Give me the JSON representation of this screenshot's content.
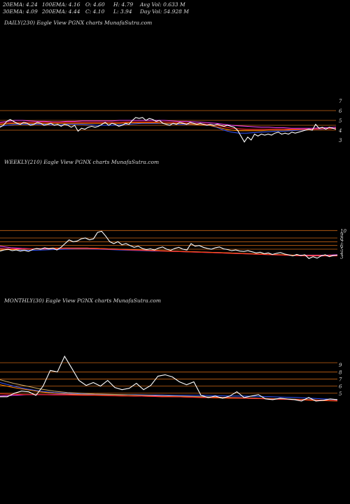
{
  "header": {
    "ema20": "20EMA: 4.24",
    "ema30": "30EMA: 4.09",
    "ema100": "100EMA: 4.16",
    "ema200": "200EMA: 4.44",
    "open": "O: 4.60",
    "close": "C: 4.10",
    "high": "H: 4.79",
    "low": "L: 3.94",
    "avg_vol": "Avg Vol: 0.633 M",
    "day_vol": "Day Vol: 54.928 M"
  },
  "colors": {
    "price": "#ffffff",
    "ema_blue": "#3355ff",
    "ema_magenta": "#ff44ff",
    "ema_orange": "#ff8800",
    "ema_red": "#ff2222",
    "ema_tan": "#ccaa66",
    "level_line": "#c86414"
  },
  "chart_data": [
    {
      "type": "line",
      "title": "DAILY(230) Eagle View PGNX charts MunafaSutra.com",
      "yticks": [
        "7",
        "6",
        "5",
        "4",
        "3"
      ],
      "ylim": [
        3,
        7
      ],
      "series": [
        {
          "color_key": "price",
          "values": [
            4.3,
            4.5,
            4.9,
            5.1,
            4.9,
            4.7,
            4.6,
            4.8,
            4.7,
            4.5,
            4.6,
            4.8,
            4.7,
            4.5,
            4.6,
            4.7,
            4.5,
            4.6,
            4.4,
            4.6,
            4.5,
            4.3,
            4.5,
            3.9,
            4.2,
            4.1,
            4.3,
            4.4,
            4.3,
            4.4,
            4.6,
            4.8,
            4.5,
            4.7,
            4.6,
            4.4,
            4.5,
            4.7,
            4.6,
            5.0,
            5.3,
            5.2,
            5.3,
            5.0,
            5.2,
            5.1,
            4.9,
            5.0,
            4.7,
            4.6,
            4.5,
            4.7,
            4.6,
            4.8,
            4.7,
            4.6,
            4.8,
            4.7,
            4.6,
            4.7,
            4.6,
            4.5,
            4.6,
            4.5,
            4.6,
            4.5,
            4.4,
            4.5,
            4.4,
            4.3,
            4.0,
            3.4,
            2.8,
            3.3,
            3.0,
            3.6,
            3.4,
            3.6,
            3.5,
            3.6,
            3.5,
            3.7,
            3.8,
            3.6,
            3.7,
            3.6,
            3.8,
            3.7,
            3.8,
            3.9,
            4.0,
            4.1,
            4.0,
            4.6,
            4.2,
            4.3,
            4.1,
            4.3,
            4.2,
            4.1
          ]
        },
        {
          "color_key": "ema_blue",
          "values": [
            4.4,
            4.5,
            4.6,
            4.6,
            4.6,
            4.6,
            4.6,
            4.55,
            4.55,
            4.6,
            4.6,
            4.6,
            4.55,
            4.5,
            4.5,
            4.5,
            4.55,
            4.6,
            4.65,
            4.7,
            4.7,
            4.7,
            4.7,
            4.65,
            4.6,
            4.6,
            4.6,
            4.55,
            4.5,
            4.3,
            4.0,
            3.8,
            3.7,
            3.7,
            3.75,
            3.8,
            3.85,
            3.9,
            3.9,
            3.95,
            4.0,
            4.05,
            4.1,
            4.1,
            4.15,
            4.2
          ]
        },
        {
          "color_key": "ema_magenta",
          "values": [
            4.8,
            4.9,
            5.0,
            5.0,
            4.95,
            4.9,
            4.9,
            4.85,
            4.85,
            4.9,
            4.9,
            4.95,
            4.95,
            4.95,
            4.95,
            4.95,
            5.0,
            5.0,
            5.0,
            5.0,
            5.0,
            5.0,
            5.0,
            4.95,
            4.9,
            4.9,
            4.85,
            4.8,
            4.75,
            4.7,
            4.6,
            4.5,
            4.45,
            4.4,
            4.35,
            4.3,
            4.3,
            4.25,
            4.25,
            4.2,
            4.2,
            4.2,
            4.2,
            4.25,
            4.25,
            4.3
          ]
        },
        {
          "color_key": "ema_orange",
          "values": [
            4.6,
            4.65,
            4.7,
            4.7,
            4.7,
            4.7,
            4.7,
            4.7,
            4.7,
            4.7,
            4.7,
            4.7,
            4.7,
            4.7,
            4.7,
            4.7,
            4.7,
            4.75,
            4.75,
            4.75,
            4.75,
            4.75,
            4.7,
            4.7,
            4.7,
            4.65,
            4.6,
            4.55,
            4.5,
            4.35,
            4.15,
            4.0,
            3.95,
            3.95,
            3.95,
            3.95,
            4.0,
            4.0,
            4.0,
            4.05,
            4.05,
            4.1,
            4.1,
            4.15,
            4.15,
            4.2
          ]
        },
        {
          "color_key": "ema_red",
          "values": [
            4.7,
            4.75,
            4.8,
            4.8,
            4.8,
            4.8,
            4.8,
            4.8,
            4.8,
            4.8,
            4.8,
            4.8,
            4.8,
            4.8,
            4.8,
            4.8,
            4.8,
            4.85,
            4.85,
            4.85,
            4.85,
            4.85,
            4.85,
            4.8,
            4.8,
            4.75,
            4.7,
            4.65,
            4.6,
            4.5,
            4.35,
            4.2,
            4.15,
            4.1,
            4.1,
            4.1,
            4.1,
            4.1,
            4.1,
            4.1,
            4.1,
            4.1,
            4.1,
            4.15,
            4.15,
            4.2
          ]
        }
      ],
      "levels": [
        6.0,
        5.0,
        4.5,
        4.0
      ]
    },
    {
      "type": "line",
      "title": "WEEKLY(210) Eagle View PGNX charts MunafaSutra.com",
      "yticks": [
        "10",
        "9",
        "8",
        "7",
        "6",
        "5",
        "4",
        "3"
      ],
      "ylim": [
        2,
        11
      ],
      "series": [
        {
          "color_key": "price",
          "values": [
            4.5,
            4.8,
            5.0,
            4.6,
            4.8,
            4.5,
            4.7,
            4.4,
            4.9,
            5.2,
            5.0,
            5.4,
            5.1,
            5.3,
            4.8,
            5.5,
            6.5,
            7.5,
            7.0,
            7.2,
            7.8,
            8.0,
            7.5,
            7.8,
            9.5,
            9.8,
            8.5,
            7.0,
            6.5,
            7.0,
            6.2,
            6.5,
            6.0,
            5.5,
            5.8,
            5.2,
            4.9,
            5.1,
            4.8,
            5.3,
            5.6,
            5.0,
            4.7,
            5.2,
            5.5,
            5.0,
            4.8,
            6.5,
            5.8,
            6.0,
            5.5,
            5.2,
            5.0,
            5.4,
            5.6,
            5.1,
            4.9,
            4.6,
            4.8,
            4.5,
            4.4,
            4.6,
            4.3,
            4.0,
            4.2,
            3.8,
            4.0,
            3.6,
            3.9,
            4.1,
            3.7,
            3.5,
            3.2,
            3.6,
            3.3,
            3.5,
            2.5,
            3.0,
            2.6,
            3.2,
            3.5,
            3.0,
            3.3,
            3.4
          ]
        },
        {
          "color_key": "ema_blue",
          "values": [
            5.3,
            5.0,
            4.8,
            4.7,
            4.8,
            4.9,
            5.0,
            5.1,
            5.1,
            5.0,
            4.9,
            4.8,
            4.7,
            4.6,
            4.5,
            4.5,
            4.4,
            4.3,
            4.2,
            4.1,
            4.0,
            3.9,
            3.8,
            3.7,
            3.6,
            3.5,
            3.4,
            3.3,
            3.2,
            3.2,
            3.2,
            3.3
          ]
        },
        {
          "color_key": "ema_magenta",
          "values": [
            5.8,
            5.4,
            5.2,
            5.1,
            5.1,
            5.2,
            5.3,
            5.3,
            5.3,
            5.2,
            5.1,
            5.0,
            4.9,
            4.8,
            4.7,
            4.6,
            4.5,
            4.4,
            4.3,
            4.2,
            4.1,
            4.0,
            3.9,
            3.8,
            3.7,
            3.6,
            3.5,
            3.4,
            3.4,
            3.4,
            3.4,
            3.5
          ]
        },
        {
          "color_key": "ema_orange",
          "values": [
            4.8,
            4.9,
            5.0,
            5.1,
            5.2,
            5.3,
            5.3,
            5.3,
            5.3,
            5.2,
            5.1,
            5.0,
            4.9,
            4.8,
            4.7,
            4.6,
            4.5,
            4.4,
            4.3,
            4.2,
            4.1,
            4.0,
            3.9,
            3.8,
            3.7,
            3.6,
            3.5,
            3.4,
            3.3,
            3.3,
            3.3,
            3.3
          ]
        },
        {
          "color_key": "ema_red",
          "values": [
            5.2,
            5.1,
            5.1,
            5.1,
            5.2,
            5.2,
            5.2,
            5.2,
            5.2,
            5.1,
            5.0,
            4.9,
            4.8,
            4.7,
            4.6,
            4.5,
            4.4,
            4.3,
            4.2,
            4.1,
            4.0,
            3.9,
            3.8,
            3.7,
            3.6,
            3.5,
            3.4,
            3.3,
            3.2,
            3.2,
            3.2,
            3.2
          ]
        }
      ],
      "levels": [
        10,
        8,
        7,
        6,
        5
      ]
    },
    {
      "type": "line",
      "title": "MONTHLY(30) Eagle View PGNX charts MunafaSutra.com",
      "yticks": [
        "9",
        "8",
        "7",
        "6",
        "5"
      ],
      "ylim": [
        3.5,
        10
      ],
      "series": [
        {
          "color_key": "price",
          "values": [
            4.5,
            4.5,
            5.0,
            5.3,
            5.2,
            4.7,
            6.0,
            8.2,
            8.0,
            10.2,
            8.5,
            6.8,
            6.1,
            6.5,
            6.0,
            6.8,
            5.8,
            5.5,
            5.7,
            6.4,
            5.5,
            6.1,
            7.4,
            7.6,
            7.3,
            6.6,
            6.2,
            6.6,
            4.7,
            4.4,
            4.6,
            4.3,
            4.6,
            5.2,
            4.4,
            4.6,
            4.8,
            4.2,
            4.1,
            4.3,
            4.2,
            4.1,
            3.9,
            4.4,
            3.9,
            4.0,
            4.2,
            4.1
          ]
        },
        {
          "color_key": "ema_blue",
          "values": [
            6.5,
            6.0,
            5.6,
            5.3,
            5.1,
            5.0,
            4.9,
            4.85,
            4.8,
            4.8,
            4.8,
            4.75,
            4.75,
            4.7,
            4.7,
            4.7,
            4.65,
            4.6,
            4.6,
            4.55,
            4.5,
            4.45,
            4.4,
            4.3,
            4.2,
            4.1
          ]
        },
        {
          "color_key": "ema_magenta",
          "values": [
            4.6,
            4.7,
            4.8,
            4.8,
            4.8,
            4.8,
            4.8,
            4.75,
            4.7,
            4.65,
            4.6,
            4.6,
            4.55,
            4.5,
            4.5,
            4.45,
            4.4,
            4.4,
            4.35,
            4.3,
            4.2,
            4.15,
            4.1,
            4.05,
            4.0,
            3.95
          ]
        },
        {
          "color_key": "ema_orange",
          "values": [
            6.2,
            5.8,
            5.5,
            5.2,
            5.0,
            4.9,
            4.8,
            4.75,
            4.7,
            4.65,
            4.6,
            4.55,
            4.5,
            4.5,
            4.45,
            4.4,
            4.35,
            4.3,
            4.3,
            4.25,
            4.2,
            4.15,
            4.1,
            4.0,
            3.95,
            3.9
          ]
        },
        {
          "color_key": "ema_tan",
          "values": [
            6.9,
            6.4,
            6.0,
            5.6,
            5.3,
            5.1,
            5.0,
            4.9,
            4.85,
            4.8,
            4.75,
            4.7,
            4.65,
            4.6,
            4.55,
            4.5,
            4.45,
            4.4,
            4.35,
            4.3,
            4.25,
            4.2,
            4.15,
            4.1,
            4.0,
            3.95
          ]
        },
        {
          "color_key": "ema_red",
          "values": [
            4.9,
            4.85,
            4.8,
            4.8,
            4.75,
            4.75,
            4.7,
            4.7,
            4.65,
            4.6,
            4.6,
            4.55,
            4.5,
            4.5,
            4.45,
            4.4,
            4.4,
            4.35,
            4.3,
            4.25,
            4.2,
            4.15,
            4.1,
            4.05,
            4.0,
            3.95
          ]
        }
      ],
      "levels": [
        9.3,
        8.0,
        7.0,
        6.0,
        5.0
      ]
    }
  ]
}
